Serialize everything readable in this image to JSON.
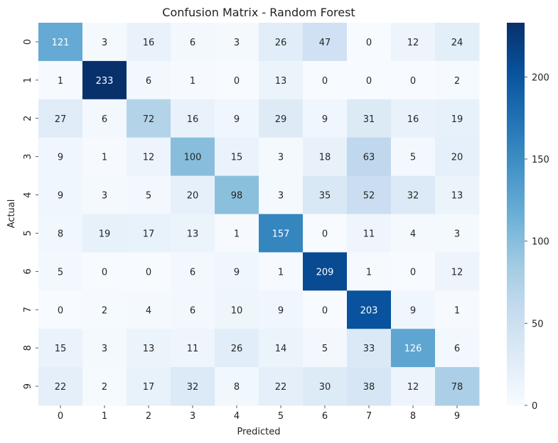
{
  "chart_data": {
    "type": "heatmap",
    "title": "Confusion Matrix - Random Forest",
    "xlabel": "Predicted",
    "ylabel": "Actual",
    "x_categories": [
      "0",
      "1",
      "2",
      "3",
      "4",
      "5",
      "6",
      "7",
      "8",
      "9"
    ],
    "y_categories": [
      "0",
      "1",
      "2",
      "3",
      "4",
      "5",
      "6",
      "7",
      "8",
      "9"
    ],
    "values": [
      [
        121,
        3,
        16,
        6,
        3,
        26,
        47,
        0,
        12,
        24
      ],
      [
        1,
        233,
        6,
        1,
        0,
        13,
        0,
        0,
        0,
        2
      ],
      [
        27,
        6,
        72,
        16,
        9,
        29,
        9,
        31,
        16,
        19
      ],
      [
        9,
        1,
        12,
        100,
        15,
        3,
        18,
        63,
        5,
        20
      ],
      [
        9,
        3,
        5,
        20,
        98,
        3,
        35,
        52,
        32,
        13
      ],
      [
        8,
        19,
        17,
        13,
        1,
        157,
        0,
        11,
        4,
        3
      ],
      [
        5,
        0,
        0,
        6,
        9,
        1,
        209,
        1,
        0,
        12
      ],
      [
        0,
        2,
        4,
        6,
        10,
        9,
        0,
        203,
        9,
        1
      ],
      [
        15,
        3,
        13,
        11,
        26,
        14,
        5,
        33,
        126,
        6
      ],
      [
        22,
        2,
        17,
        32,
        8,
        22,
        30,
        38,
        12,
        78
      ]
    ],
    "colorbar": {
      "colormap": "Blues",
      "range": [
        0,
        233
      ],
      "ticks": [
        0,
        50,
        100,
        150,
        200
      ]
    },
    "colors": {
      "low": "#f7fbff",
      "high": "#08306b"
    }
  }
}
